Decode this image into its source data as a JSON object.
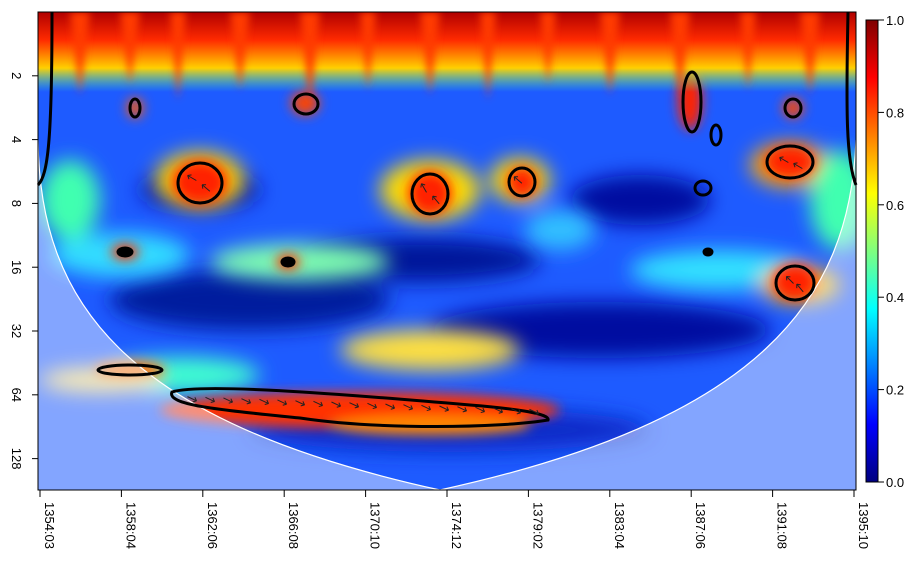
{
  "chart_data": {
    "type": "heatmap",
    "title": "",
    "xlabel": "",
    "ylabel": "",
    "x_tick_labels": [
      "1354:03",
      "1358:04",
      "1362:06",
      "1366:08",
      "1370:10",
      "1374:12",
      "1379:02",
      "1383:04",
      "1387:06",
      "1391:08",
      "1395:10"
    ],
    "y_tick_values": [
      2,
      4,
      8,
      16,
      32,
      64,
      128
    ],
    "y_tick_labels": [
      "2",
      "4",
      "8",
      "16",
      "32",
      "64",
      "128"
    ],
    "y_scale": "log2",
    "y_range": [
      1,
      180
    ],
    "y_inverted": true,
    "colorbar": {
      "range": [
        0.0,
        1.0
      ],
      "tick_values": [
        0.0,
        0.2,
        0.4,
        0.6,
        0.8,
        1.0
      ],
      "tick_labels": [
        "0.0",
        "0.2",
        "0.4",
        "0.6",
        "0.8",
        "1.0"
      ],
      "colors": [
        "#00007f",
        "#0000ff",
        "#007fff",
        "#00ffff",
        "#7fff7f",
        "#ffff00",
        "#ff7f00",
        "#ff0000",
        "#7f0000"
      ]
    },
    "cone_of_influence": true,
    "significance_contours": true,
    "phase_arrows": true,
    "legend": "right"
  }
}
